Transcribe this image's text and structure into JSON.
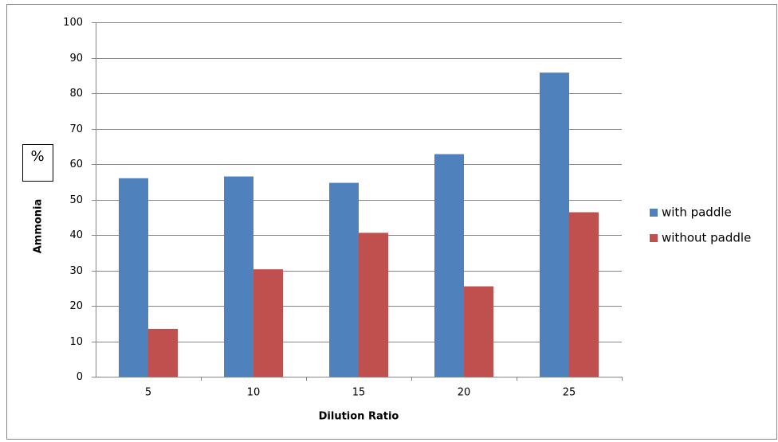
{
  "chart_data": {
    "type": "bar",
    "x_label": "Dilution Ratio",
    "y_label": "Ammonia",
    "annotation": "%",
    "categories": [
      "5",
      "10",
      "15",
      "20",
      "25"
    ],
    "series": [
      {
        "name": "with paddle",
        "color": "#4f81bd",
        "values": [
          56,
          56.5,
          54.7,
          62.8,
          85.8
        ]
      },
      {
        "name": "without paddle",
        "color": "#c0504d",
        "values": [
          13.5,
          30.3,
          40.6,
          25.5,
          46.4
        ]
      }
    ],
    "ylim": [
      0,
      100
    ],
    "yticks": [
      0,
      10,
      20,
      30,
      40,
      50,
      60,
      70,
      80,
      90,
      100
    ],
    "grid": true,
    "legend": "right"
  }
}
